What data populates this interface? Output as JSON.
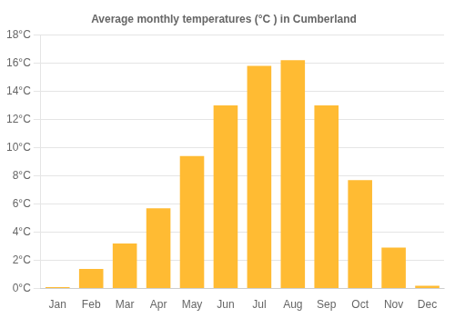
{
  "chart_data": {
    "type": "bar",
    "title": "Average monthly temperatures (°C ) in Cumberland",
    "categories": [
      "Jan",
      "Feb",
      "Mar",
      "Apr",
      "May",
      "Jun",
      "Jul",
      "Aug",
      "Sep",
      "Oct",
      "Nov",
      "Dec"
    ],
    "values": [
      0.1,
      1.4,
      3.2,
      5.7,
      9.4,
      13.0,
      15.8,
      16.2,
      13.0,
      7.7,
      2.9,
      0.2
    ],
    "color": "#FFBB33",
    "ylim": [
      0,
      18
    ],
    "yticks": [
      {
        "value": 0,
        "label": "0°C"
      },
      {
        "value": 2,
        "label": "2°C"
      },
      {
        "value": 4,
        "label": "4°C"
      },
      {
        "value": 6,
        "label": "6°C"
      },
      {
        "value": 8,
        "label": "8°C"
      },
      {
        "value": 10,
        "label": "10°C"
      },
      {
        "value": 12,
        "label": "12°C"
      },
      {
        "value": 14,
        "label": "14°C"
      },
      {
        "value": 16,
        "label": "16°C"
      },
      {
        "value": 18,
        "label": "18°C"
      }
    ],
    "grid": true
  }
}
